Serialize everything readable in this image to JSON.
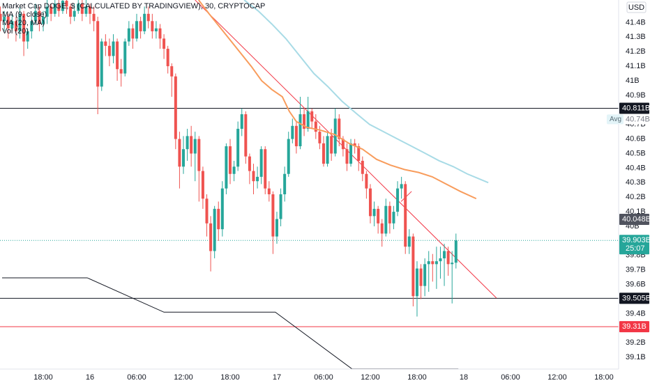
{
  "chart_data": {
    "type": "candlestick",
    "title": "Market Cap DOGE, $ (CALCULATED BY TRADINGVIEW), 30, CRYPTOCAP",
    "volume_label": "Vol (20)",
    "currency": "USD",
    "up_color": "#26a69a",
    "down_color": "#ef5350",
    "xlim": [
      -0.107,
      158.77
    ],
    "ylim": [
      39.019,
      41.555
    ],
    "yticks": [
      {
        "value": 41.4,
        "label": "41.4B"
      },
      {
        "value": 41.3,
        "label": "41.3B"
      },
      {
        "value": 41.2,
        "label": "41.2B"
      },
      {
        "value": 41.1,
        "label": "41.1B"
      },
      {
        "value": 41,
        "label": "41B"
      },
      {
        "value": 40.9,
        "label": "40.9B"
      },
      {
        "value": 40.7,
        "label": "40.7B"
      },
      {
        "value": 40.6,
        "label": "40.6B"
      },
      {
        "value": 40.5,
        "label": "40.5B"
      },
      {
        "value": 40.4,
        "label": "40.4B"
      },
      {
        "value": 40.3,
        "label": "40.3B"
      },
      {
        "value": 40.2,
        "label": "40.2B"
      },
      {
        "value": 40.1,
        "label": "40.1B"
      },
      {
        "value": 40,
        "label": "40B"
      },
      {
        "value": 39.8,
        "label": "39.8B"
      },
      {
        "value": 39.7,
        "label": "39.7B"
      },
      {
        "value": 39.6,
        "label": "39.6B"
      },
      {
        "value": 39.4,
        "label": "39.4B"
      },
      {
        "value": 39.2,
        "label": "39.2B"
      },
      {
        "value": 39.1,
        "label": "39.1B"
      }
    ],
    "xticks": [
      {
        "value": 11,
        "label": "18:00"
      },
      {
        "value": 23,
        "label": "16"
      },
      {
        "value": 35,
        "label": "06:00"
      },
      {
        "value": 47,
        "label": "12:00"
      },
      {
        "value": 59,
        "label": "18:00"
      },
      {
        "value": 71,
        "label": "17"
      },
      {
        "value": 83,
        "label": "06:00"
      },
      {
        "value": 95,
        "label": "12:00"
      },
      {
        "value": 107,
        "label": "18:00"
      },
      {
        "value": 119,
        "label": "18"
      },
      {
        "value": 131,
        "label": "06:00"
      },
      {
        "value": 143,
        "label": "12:00"
      },
      {
        "value": 155,
        "label": "18:00"
      }
    ],
    "candles": [
      [
        41.46,
        41.51,
        41.34,
        41.41
      ],
      [
        41.41,
        41.48,
        41.34,
        41.44
      ],
      [
        41.44,
        41.46,
        41.29,
        41.36
      ],
      [
        41.36,
        41.46,
        41.34,
        41.41
      ],
      [
        41.41,
        41.44,
        41.27,
        41.34
      ],
      [
        41.34,
        41.51,
        41.29,
        41.46
      ],
      [
        41.46,
        41.48,
        41.17,
        41.27
      ],
      [
        41.27,
        41.36,
        41.22,
        41.34
      ],
      [
        41.34,
        41.44,
        41.29,
        41.41
      ],
      [
        41.41,
        41.53,
        41.39,
        41.48
      ],
      [
        41.48,
        41.51,
        41.34,
        41.39
      ],
      [
        41.39,
        41.48,
        41.34,
        41.44
      ],
      [
        41.44,
        41.56,
        41.39,
        41.51
      ],
      [
        41.51,
        41.53,
        41.41,
        41.46
      ],
      [
        41.46,
        41.56,
        41.44,
        41.53
      ],
      [
        41.53,
        41.56,
        41.44,
        41.48
      ],
      [
        41.48,
        41.56,
        41.46,
        41.55
      ],
      [
        41.55,
        41.56,
        41.46,
        41.51
      ],
      [
        41.51,
        41.53,
        41.39,
        41.44
      ],
      [
        41.44,
        41.53,
        41.41,
        41.48
      ],
      [
        41.48,
        41.56,
        41.46,
        41.53
      ],
      [
        41.53,
        41.56,
        41.41,
        41.46
      ],
      [
        41.46,
        41.56,
        41.44,
        41.51
      ],
      [
        41.51,
        41.53,
        41.39,
        41.46
      ],
      [
        41.46,
        41.51,
        41.34,
        41.41
      ],
      [
        41.41,
        41.44,
        40.77,
        40.96
      ],
      [
        40.96,
        41.29,
        40.93,
        41.27
      ],
      [
        41.27,
        41.32,
        41.17,
        41.24
      ],
      [
        41.24,
        41.29,
        41.1,
        41.17
      ],
      [
        41.17,
        41.32,
        41.12,
        41.27
      ],
      [
        41.27,
        41.29,
        41.0,
        41.08
      ],
      [
        41.08,
        41.15,
        40.96,
        41.05
      ],
      [
        41.05,
        41.29,
        41.03,
        41.27
      ],
      [
        41.27,
        41.41,
        41.24,
        41.36
      ],
      [
        41.36,
        41.39,
        41.22,
        41.29
      ],
      [
        41.29,
        41.46,
        41.27,
        41.41
      ],
      [
        41.41,
        41.44,
        41.29,
        41.34
      ],
      [
        41.34,
        41.51,
        41.32,
        41.46
      ],
      [
        41.46,
        41.51,
        41.36,
        41.41
      ],
      [
        41.41,
        41.46,
        41.29,
        41.34
      ],
      [
        41.34,
        41.41,
        41.29,
        41.36
      ],
      [
        41.36,
        41.39,
        41.22,
        41.29
      ],
      [
        41.29,
        41.32,
        41.15,
        41.22
      ],
      [
        41.22,
        41.24,
        41.05,
        41.1
      ],
      [
        41.1,
        41.12,
        40.89,
        41.03
      ],
      [
        41.03,
        41.05,
        40.53,
        40.6
      ],
      [
        40.6,
        40.65,
        40.26,
        40.41
      ],
      [
        40.41,
        40.62,
        40.36,
        40.53
      ],
      [
        40.53,
        40.67,
        40.45,
        40.62
      ],
      [
        40.62,
        40.69,
        40.41,
        40.5
      ],
      [
        40.5,
        40.65,
        40.31,
        40.6
      ],
      [
        40.6,
        40.62,
        40.17,
        40.38
      ],
      [
        40.38,
        40.41,
        40.12,
        40.19
      ],
      [
        40.19,
        40.22,
        39.93,
        40.02
      ],
      [
        40.02,
        40.07,
        39.69,
        39.83
      ],
      [
        39.83,
        40.14,
        39.78,
        40.12
      ],
      [
        40.12,
        40.17,
        39.9,
        39.98
      ],
      [
        39.98,
        40.31,
        39.93,
        40.26
      ],
      [
        40.26,
        40.57,
        40.22,
        40.55
      ],
      [
        40.55,
        40.6,
        40.29,
        40.36
      ],
      [
        40.36,
        40.45,
        40.31,
        40.41
      ],
      [
        40.41,
        40.72,
        40.38,
        40.67
      ],
      [
        40.67,
        40.81,
        40.62,
        40.77
      ],
      [
        40.77,
        40.79,
        40.43,
        40.48
      ],
      [
        40.48,
        40.5,
        40.29,
        40.38
      ],
      [
        40.38,
        40.43,
        40.22,
        40.31
      ],
      [
        40.31,
        40.41,
        40.26,
        40.34
      ],
      [
        40.34,
        40.55,
        40.29,
        40.53
      ],
      [
        40.53,
        40.55,
        40.22,
        40.26
      ],
      [
        40.26,
        40.31,
        40.17,
        40.22
      ],
      [
        40.22,
        40.24,
        39.81,
        39.93
      ],
      [
        39.93,
        40.1,
        39.88,
        40.05
      ],
      [
        40.05,
        40.26,
        40.0,
        40.22
      ],
      [
        40.22,
        40.41,
        40.17,
        40.36
      ],
      [
        40.36,
        40.65,
        40.34,
        40.6
      ],
      [
        40.6,
        40.74,
        40.57,
        40.69
      ],
      [
        40.69,
        40.72,
        40.5,
        40.55
      ],
      [
        40.55,
        40.89,
        40.53,
        40.77
      ],
      [
        40.77,
        40.81,
        40.62,
        40.67
      ],
      [
        40.67,
        40.89,
        40.65,
        40.79
      ],
      [
        40.79,
        40.81,
        40.67,
        40.72
      ],
      [
        40.72,
        40.77,
        40.6,
        40.65
      ],
      [
        40.65,
        40.69,
        40.53,
        40.57
      ],
      [
        40.57,
        40.62,
        40.41,
        40.43
      ],
      [
        40.43,
        40.65,
        40.41,
        40.62
      ],
      [
        40.62,
        40.67,
        40.45,
        40.5
      ],
      [
        40.5,
        40.81,
        40.48,
        40.74
      ],
      [
        40.74,
        40.77,
        40.55,
        40.6
      ],
      [
        40.6,
        40.62,
        40.48,
        40.53
      ],
      [
        40.53,
        40.57,
        40.38,
        40.43
      ],
      [
        40.43,
        40.6,
        40.41,
        40.57
      ],
      [
        40.57,
        40.6,
        40.5,
        40.55
      ],
      [
        40.55,
        40.57,
        40.38,
        40.45
      ],
      [
        40.45,
        40.48,
        40.31,
        40.36
      ],
      [
        40.36,
        40.38,
        40.19,
        40.26
      ],
      [
        40.26,
        40.29,
        40.02,
        40.07
      ],
      [
        40.07,
        40.17,
        40.0,
        40.12
      ],
      [
        40.12,
        40.14,
        39.95,
        40.02
      ],
      [
        40.02,
        40.05,
        39.86,
        39.95
      ],
      [
        39.95,
        40.19,
        39.93,
        40.14
      ],
      [
        40.14,
        40.17,
        39.95,
        40.02
      ],
      [
        40.02,
        40.14,
        39.98,
        40.1
      ],
      [
        40.1,
        40.31,
        40.07,
        40.26
      ],
      [
        40.26,
        40.34,
        40.19,
        40.29
      ],
      [
        40.29,
        40.31,
        39.81,
        39.86
      ],
      [
        39.86,
        39.98,
        39.81,
        39.93
      ],
      [
        39.93,
        39.95,
        39.45,
        39.52
      ],
      [
        39.52,
        39.76,
        39.38,
        39.71
      ],
      [
        39.71,
        39.74,
        39.5,
        39.59
      ],
      [
        39.59,
        39.78,
        39.52,
        39.74
      ],
      [
        39.74,
        39.83,
        39.55,
        39.76
      ],
      [
        39.76,
        39.81,
        39.62,
        39.74
      ],
      [
        39.74,
        39.86,
        39.57,
        39.76
      ],
      [
        39.76,
        39.86,
        39.64,
        39.78
      ],
      [
        39.78,
        39.88,
        39.59,
        39.83
      ],
      [
        39.83,
        39.86,
        39.66,
        39.74
      ],
      [
        39.74,
        39.83,
        39.47,
        39.75
      ],
      [
        39.75,
        39.95,
        39.71,
        39.903
      ]
    ],
    "lines": [
      {
        "name": "MA (9, close)",
        "color": "#f89c5c",
        "x": [
          50.9,
          53.6,
          57.2,
          60.8,
          64.4,
          67.1,
          69.7,
          72.4,
          74.2,
          76.0,
          78.7,
          82.3,
          85.9,
          89.5,
          93.0,
          96.6,
          100.2,
          103.8,
          107.4,
          110.9,
          114.5,
          118.1,
          122.2
        ],
        "values": [
          41.555,
          41.46,
          41.34,
          41.22,
          41.1,
          41.0,
          40.94,
          40.89,
          40.79,
          40.72,
          40.68,
          40.66,
          40.63,
          40.57,
          40.53,
          40.46,
          40.42,
          40.39,
          40.37,
          40.34,
          40.29,
          40.24,
          40.19
        ]
      },
      {
        "name": "MA (20, MA)",
        "color": "#a8dbe6",
        "x": [
          62.6,
          66.2,
          69.7,
          73.3,
          76.9,
          80.5,
          84.1,
          87.7,
          91.2,
          94.8,
          98.4,
          102.0,
          105.6,
          109.2,
          112.7,
          116.3,
          119.9,
          125.3
        ],
        "values": [
          41.555,
          41.48,
          41.39,
          41.29,
          41.17,
          41.05,
          40.96,
          40.86,
          40.78,
          40.7,
          40.65,
          40.6,
          40.55,
          40.5,
          40.45,
          40.41,
          40.36,
          40.3
        ]
      }
    ],
    "drawings": [
      {
        "color": "#f23645",
        "x": [
          50.0,
          127.4
        ],
        "values": [
          41.555,
          39.507
        ]
      },
      {
        "color": "#f23645",
        "x": [
          102.9,
          105.6
        ],
        "values": [
          40.17,
          40.24
        ]
      },
      {
        "color": "#131722",
        "x": [
          0.43,
          22.3,
          42.0,
          70.6,
          90.3,
          117.6
        ],
        "values": [
          39.646,
          39.646,
          39.41,
          39.41,
          39.02,
          39.02
        ]
      }
    ],
    "levels": [
      {
        "value": 40.811,
        "label": "40.811B",
        "color": "#131722",
        "line": true
      },
      {
        "value": 40.048,
        "label": "40.048B",
        "color": "#50535e",
        "line": false
      },
      {
        "value": 39.903,
        "label": "39.903B",
        "countdown": "25:07",
        "color": "#26a69a",
        "line": true,
        "style": "dotted"
      },
      {
        "value": 39.505,
        "label": "39.505B",
        "color": "#131722",
        "line": true
      },
      {
        "value": 39.31,
        "label": "39.31B",
        "color": "#f23645",
        "line": true
      }
    ],
    "avg": {
      "label": "Avg",
      "value": 40.735,
      "value_label": "40.74B"
    }
  }
}
